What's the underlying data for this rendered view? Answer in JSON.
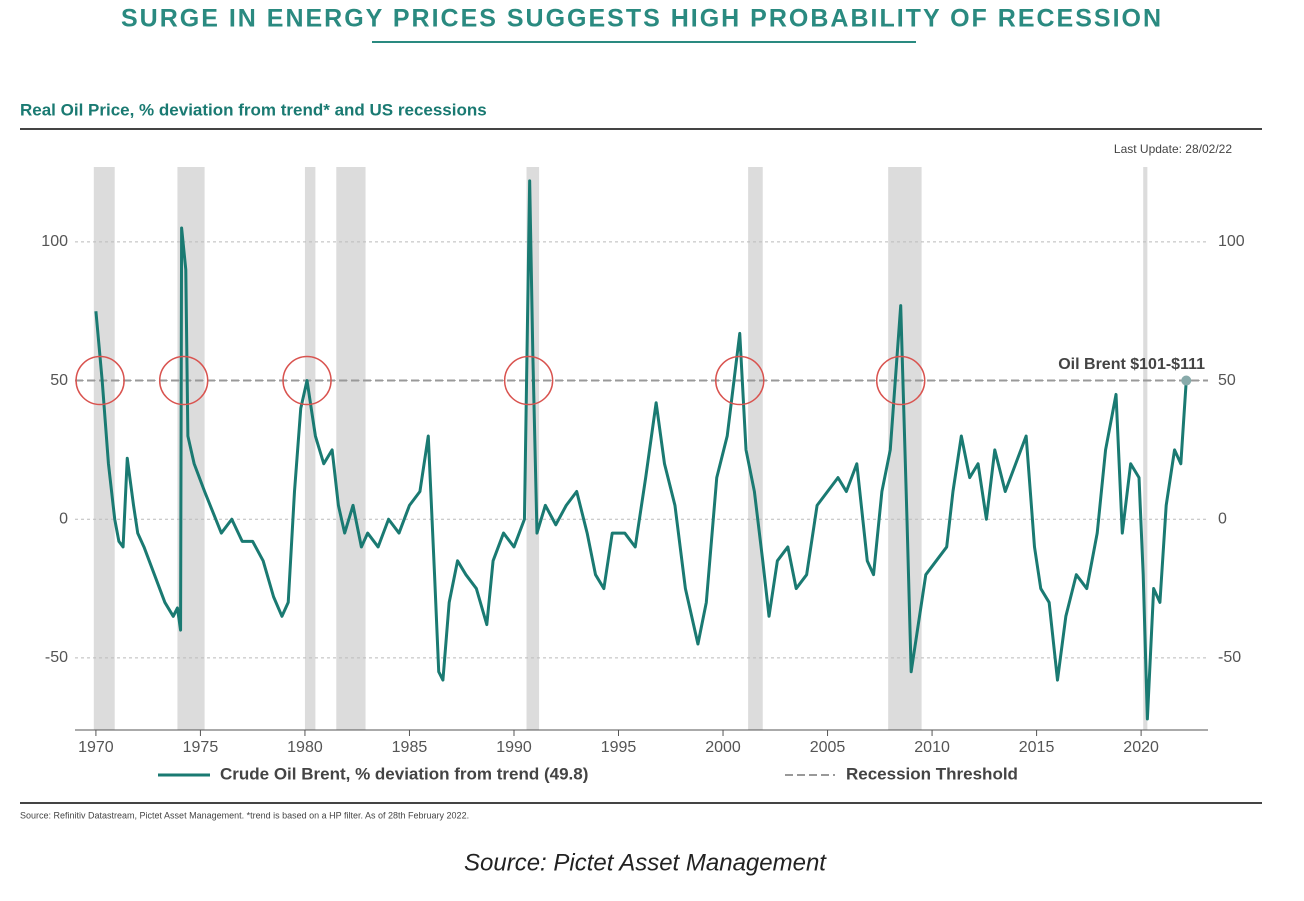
{
  "chart_data": {
    "type": "line",
    "title": "SURGE IN ENERGY PRICES SUGGESTS HIGH PROBABILITY OF RECESSION",
    "subtitle": "Real Oil Price, % deviation from trend* and US recessions",
    "last_update": "Last Update: 28/02/22",
    "annotation": "Oil Brent $101-$111",
    "footnote": "Source: Refinitiv Datastream, Pictet Asset Management. *trend is based on a HP filter. As of 28th February 2022.",
    "caption": "Source: Pictet Asset Management",
    "x": [
      1970.0,
      1970.3,
      1970.6,
      1970.9,
      1971.1,
      1971.3,
      1971.5,
      1971.8,
      1972.0,
      1972.3,
      1972.8,
      1973.3,
      1973.7,
      1973.9,
      1974.05,
      1974.1,
      1974.3,
      1974.4,
      1974.7,
      1975.2,
      1976.0,
      1976.5,
      1977.0,
      1977.5,
      1978.0,
      1978.5,
      1978.9,
      1979.2,
      1979.5,
      1979.8,
      1980.1,
      1980.5,
      1980.9,
      1981.3,
      1981.6,
      1981.9,
      1982.3,
      1982.7,
      1983.0,
      1983.5,
      1984.0,
      1984.5,
      1985.0,
      1985.5,
      1985.9,
      1986.2,
      1986.4,
      1986.6,
      1986.9,
      1987.3,
      1987.7,
      1988.2,
      1988.7,
      1989.0,
      1989.5,
      1990.0,
      1990.5,
      1990.75,
      1990.9,
      1991.1,
      1991.5,
      1992.0,
      1992.5,
      1993.0,
      1993.5,
      1993.9,
      1994.3,
      1994.7,
      1995.3,
      1995.8,
      1996.3,
      1996.8,
      1997.2,
      1997.7,
      1998.2,
      1998.8,
      1999.2,
      1999.7,
      2000.2,
      2000.8,
      2001.1,
      2001.5,
      2001.9,
      2002.2,
      2002.6,
      2003.1,
      2003.5,
      2004.0,
      2004.5,
      2005.0,
      2005.5,
      2005.9,
      2006.4,
      2006.9,
      2007.2,
      2007.6,
      2008.0,
      2008.5,
      2008.8,
      2009.0,
      2009.3,
      2009.7,
      2010.2,
      2010.7,
      2011.0,
      2011.4,
      2011.8,
      2012.2,
      2012.6,
      2013.0,
      2013.5,
      2014.0,
      2014.5,
      2014.9,
      2015.2,
      2015.6,
      2016.0,
      2016.4,
      2016.9,
      2017.4,
      2017.9,
      2018.3,
      2018.8,
      2019.1,
      2019.5,
      2019.9,
      2020.1,
      2020.3,
      2020.6,
      2020.9,
      2021.2,
      2021.6,
      2021.9,
      2022.16
    ],
    "series": [
      {
        "name": "Crude Oil Brent, % deviation from trend (49.8)",
        "color": "#1a7a72",
        "values": [
          75,
          50,
          20,
          0,
          -8,
          -10,
          22,
          5,
          -5,
          -10,
          -20,
          -30,
          -35,
          -32,
          -40,
          105,
          90,
          30,
          20,
          10,
          -5,
          0,
          -8,
          -8,
          -15,
          -28,
          -35,
          -30,
          10,
          40,
          50,
          30,
          20,
          25,
          5,
          -5,
          5,
          -10,
          -5,
          -10,
          0,
          -5,
          5,
          10,
          30,
          -20,
          -55,
          -58,
          -30,
          -15,
          -20,
          -25,
          -38,
          -15,
          -5,
          -10,
          0,
          122,
          60,
          -5,
          5,
          -2,
          5,
          10,
          -5,
          -20,
          -25,
          -5,
          -5,
          -10,
          15,
          42,
          20,
          5,
          -25,
          -45,
          -30,
          15,
          30,
          67,
          25,
          10,
          -15,
          -35,
          -15,
          -10,
          -25,
          -20,
          5,
          10,
          15,
          10,
          20,
          -15,
          -20,
          10,
          25,
          77,
          0,
          -55,
          -40,
          -20,
          -15,
          -10,
          10,
          30,
          15,
          20,
          0,
          25,
          10,
          20,
          30,
          -10,
          -25,
          -30,
          -58,
          -35,
          -20,
          -25,
          -5,
          25,
          45,
          -5,
          20,
          15,
          -20,
          -72,
          -25,
          -30,
          5,
          25,
          20,
          50
        ]
      }
    ],
    "threshold": {
      "name": "Recession Threshold",
      "value": 50,
      "color": "#999999"
    },
    "recessions": [
      [
        1969.9,
        1970.9
      ],
      [
        1973.9,
        1975.2
      ],
      [
        1980.0,
        1980.5
      ],
      [
        1981.5,
        1982.9
      ],
      [
        1990.6,
        1991.2
      ],
      [
        2001.2,
        2001.9
      ],
      [
        2007.9,
        2009.5
      ],
      [
        2020.1,
        2020.3
      ]
    ],
    "highlights": [
      1970.2,
      1974.2,
      1980.1,
      1990.7,
      2000.8,
      2008.5
    ],
    "xlim": [
      1969,
      2023.2
    ],
    "ylim": [
      -76,
      127
    ],
    "xticks": [
      1970,
      1975,
      1980,
      1985,
      1990,
      1995,
      2000,
      2005,
      2010,
      2015,
      2020
    ],
    "yticks": [
      -50,
      0,
      50,
      100
    ],
    "grid": true
  }
}
